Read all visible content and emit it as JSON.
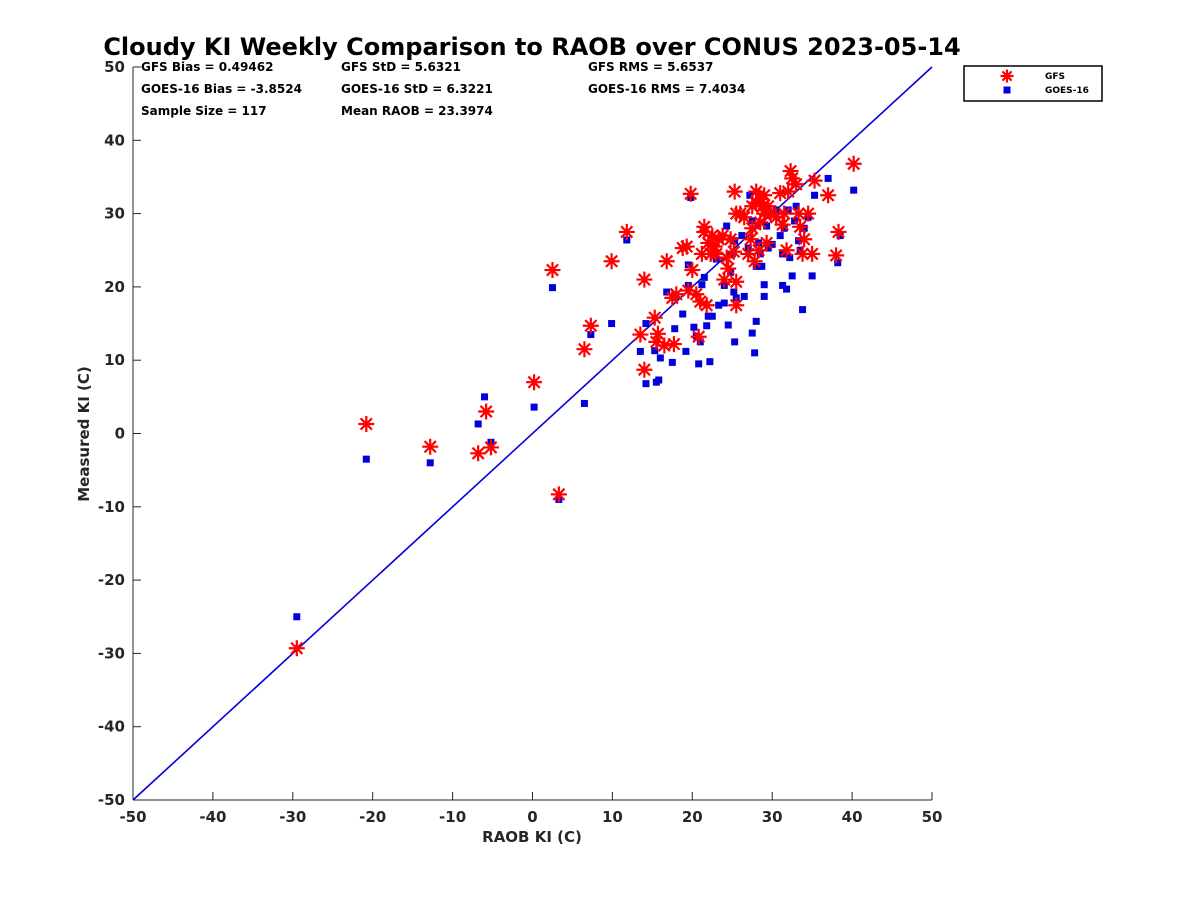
{
  "chart_data": {
    "type": "scatter",
    "title": "Cloudy KI Weekly Comparison to RAOB over CONUS 2023-05-14",
    "xlabel": "RAOB KI (C)",
    "ylabel": "Measured KI (C)",
    "xlim": [
      -50,
      50
    ],
    "ylim": [
      -50,
      50
    ],
    "xticks": [
      "-50",
      "-40",
      "-30",
      "-20",
      "-10",
      "0",
      "10",
      "20",
      "30",
      "40",
      "50"
    ],
    "yticks": [
      "50",
      "40",
      "30",
      "20",
      "10",
      "0",
      "-10",
      "-20",
      "-30",
      "-40",
      "-50"
    ],
    "reference_line": {
      "name": "1:1 line",
      "x": [
        -50,
        50
      ],
      "y": [
        -50,
        50
      ],
      "color": "#0000dd"
    },
    "stats": [
      "GFS Bias = 0.49462",
      "GFS StD = 5.6321",
      "GFS RMS = 5.6537",
      "GOES-16 Bias = -3.8524",
      "GOES-16 StD = 6.3221",
      "GOES-16 RMS = 7.4034",
      "Sample Size = 117",
      "Mean RAOB = 23.3974"
    ],
    "legend_position": "top-right",
    "series": [
      {
        "name": "GFS",
        "marker": "asterisk",
        "color": "#ff0000",
        "points": [
          [
            -29.5,
            -29.3
          ],
          [
            -20.8,
            1.3
          ],
          [
            -12.8,
            -1.8
          ],
          [
            -6.8,
            -2.7
          ],
          [
            -5.8,
            3
          ],
          [
            -5.2,
            -1.9
          ],
          [
            0.2,
            7
          ],
          [
            2.5,
            22.3
          ],
          [
            3.3,
            -8.3
          ],
          [
            6.5,
            11.5
          ],
          [
            7.3,
            14.7
          ],
          [
            9.9,
            23.5
          ],
          [
            11.8,
            27.5
          ],
          [
            13.5,
            13.5
          ],
          [
            14,
            21
          ],
          [
            14,
            8.7
          ],
          [
            15.3,
            15.8
          ],
          [
            15.5,
            12.5
          ],
          [
            15.7,
            13.6
          ],
          [
            16.5,
            12
          ],
          [
            16.8,
            23.5
          ],
          [
            17.5,
            18.5
          ],
          [
            17.7,
            12.2
          ],
          [
            18,
            19
          ],
          [
            18.8,
            25.3
          ],
          [
            19.3,
            25.5
          ],
          [
            19.5,
            19.5
          ],
          [
            19.8,
            32.7
          ],
          [
            20,
            22.3
          ],
          [
            20.5,
            19
          ],
          [
            20.8,
            13.2
          ],
          [
            21,
            18
          ],
          [
            21.2,
            24.5
          ],
          [
            21.5,
            28.2
          ],
          [
            21.5,
            27.5
          ],
          [
            21.8,
            17.5
          ],
          [
            22,
            26
          ],
          [
            22.3,
            24.5
          ],
          [
            22.5,
            27
          ],
          [
            22.8,
            25.5
          ],
          [
            23,
            24.5
          ],
          [
            23.3,
            26.5
          ],
          [
            23.8,
            27
          ],
          [
            24,
            21
          ],
          [
            24.3,
            24
          ],
          [
            24.5,
            22.5
          ],
          [
            24.8,
            26.5
          ],
          [
            25.2,
            24.8
          ],
          [
            25.3,
            33
          ],
          [
            25.5,
            30
          ],
          [
            25.5,
            17.5
          ],
          [
            25.5,
            20.7
          ],
          [
            26,
            30
          ],
          [
            26.5,
            29.5
          ],
          [
            27,
            24.5
          ],
          [
            27.3,
            26.5
          ],
          [
            27.5,
            28
          ],
          [
            27.5,
            31
          ],
          [
            27.8,
            23.5
          ],
          [
            28,
            31.5
          ],
          [
            28,
            33
          ],
          [
            28.3,
            25
          ],
          [
            28.5,
            28.8
          ],
          [
            28.5,
            32
          ],
          [
            28.8,
            31
          ],
          [
            29,
            30
          ],
          [
            29,
            32.5
          ],
          [
            29.3,
            26
          ],
          [
            29.5,
            31
          ],
          [
            29.8,
            30
          ],
          [
            30.5,
            29.5
          ],
          [
            31,
            32.8
          ],
          [
            31.3,
            28.5
          ],
          [
            31.5,
            30
          ],
          [
            31.8,
            25
          ],
          [
            32,
            33
          ],
          [
            32.3,
            35.8
          ],
          [
            32.5,
            34.8
          ],
          [
            33,
            34
          ],
          [
            33.3,
            30
          ],
          [
            33.5,
            28.2
          ],
          [
            33.8,
            24.5
          ],
          [
            34,
            26.5
          ],
          [
            34.5,
            30
          ],
          [
            35,
            24.5
          ],
          [
            35.3,
            34.5
          ],
          [
            37,
            32.5
          ],
          [
            38,
            24.3
          ],
          [
            38.3,
            27.5
          ],
          [
            40.2,
            36.8
          ]
        ]
      },
      {
        "name": "GOES-16",
        "marker": "square",
        "color": "#0000dd",
        "points": [
          [
            -29.5,
            -25
          ],
          [
            -20.8,
            -3.5
          ],
          [
            -12.8,
            -4
          ],
          [
            -6.8,
            1.3
          ],
          [
            -6,
            5
          ],
          [
            -5.2,
            -1.2
          ],
          [
            0.2,
            3.6
          ],
          [
            2.5,
            19.9
          ],
          [
            3.3,
            -9
          ],
          [
            6.5,
            4.1
          ],
          [
            7.3,
            13.5
          ],
          [
            9.9,
            15
          ],
          [
            11.8,
            26.4
          ],
          [
            13.5,
            11.2
          ],
          [
            14.2,
            6.8
          ],
          [
            14.2,
            15
          ],
          [
            15.3,
            11.3
          ],
          [
            15.5,
            7
          ],
          [
            15.8,
            7.3
          ],
          [
            16,
            10.3
          ],
          [
            16.8,
            19.3
          ],
          [
            17.5,
            9.7
          ],
          [
            17.8,
            14.3
          ],
          [
            18.8,
            16.3
          ],
          [
            19.2,
            11.2
          ],
          [
            19.5,
            20.2
          ],
          [
            19.5,
            23
          ],
          [
            19.8,
            32.2
          ],
          [
            20.2,
            14.5
          ],
          [
            20.5,
            13.3
          ],
          [
            20.8,
            9.5
          ],
          [
            21,
            12.5
          ],
          [
            21.2,
            20.3
          ],
          [
            21.5,
            21.3
          ],
          [
            21.8,
            14.7
          ],
          [
            22,
            16
          ],
          [
            22.2,
            9.8
          ],
          [
            22.5,
            16
          ],
          [
            23,
            23.8
          ],
          [
            23.3,
            17.5
          ],
          [
            24,
            17.8
          ],
          [
            24,
            20.2
          ],
          [
            24.3,
            28.3
          ],
          [
            24.5,
            14.8
          ],
          [
            24.8,
            22
          ],
          [
            25,
            24.5
          ],
          [
            25.2,
            19.3
          ],
          [
            25.3,
            26.3
          ],
          [
            25.3,
            12.5
          ],
          [
            25.5,
            18.5
          ],
          [
            26.2,
            27
          ],
          [
            26.5,
            18.7
          ],
          [
            27,
            25.3
          ],
          [
            27.2,
            32.5
          ],
          [
            27.5,
            29
          ],
          [
            27.5,
            13.7
          ],
          [
            27.8,
            11
          ],
          [
            28,
            22.8
          ],
          [
            28,
            15.3
          ],
          [
            28.3,
            26
          ],
          [
            28.5,
            24.5
          ],
          [
            28.7,
            22.8
          ],
          [
            29,
            20.3
          ],
          [
            29,
            18.7
          ],
          [
            29.3,
            28.3
          ],
          [
            29.5,
            25.3
          ],
          [
            30,
            25.8
          ],
          [
            30.5,
            30.5
          ],
          [
            31,
            27
          ],
          [
            31.3,
            24.5
          ],
          [
            31.3,
            20.2
          ],
          [
            31.5,
            28
          ],
          [
            31.8,
            19.7
          ],
          [
            32,
            30.5
          ],
          [
            32.2,
            24
          ],
          [
            32.5,
            21.5
          ],
          [
            32.8,
            29
          ],
          [
            33,
            31
          ],
          [
            33.3,
            26.3
          ],
          [
            33.5,
            25
          ],
          [
            33.8,
            16.9
          ],
          [
            34,
            28
          ],
          [
            34.5,
            29.5
          ],
          [
            35,
            21.5
          ],
          [
            35.3,
            32.5
          ],
          [
            37,
            34.8
          ],
          [
            38.2,
            23.3
          ],
          [
            38.5,
            27
          ],
          [
            40.2,
            33.2
          ]
        ]
      }
    ]
  }
}
